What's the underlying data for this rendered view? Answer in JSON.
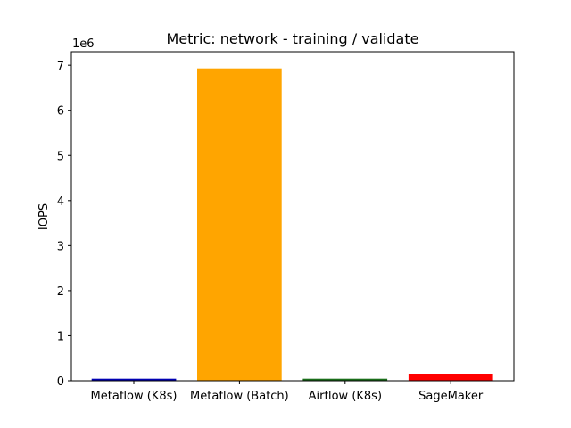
{
  "chart_data": {
    "type": "bar",
    "title": "Metric: network - training / validate",
    "xlabel": "",
    "ylabel": "IOPS",
    "y_offset_label": "1e6",
    "scale": 1000000,
    "ylim": [
      0,
      7.3
    ],
    "yticks": [
      0,
      1,
      2,
      3,
      4,
      5,
      6,
      7
    ],
    "categories": [
      "Metaflow (K8s)",
      "Metaflow (Batch)",
      "Airflow (K8s)",
      "SageMaker"
    ],
    "values": [
      45000,
      6930000,
      45000,
      150000
    ],
    "colors": [
      "#0000b3",
      "#ffa500",
      "#1a6e1a",
      "#ff0000"
    ],
    "grid": false
  }
}
